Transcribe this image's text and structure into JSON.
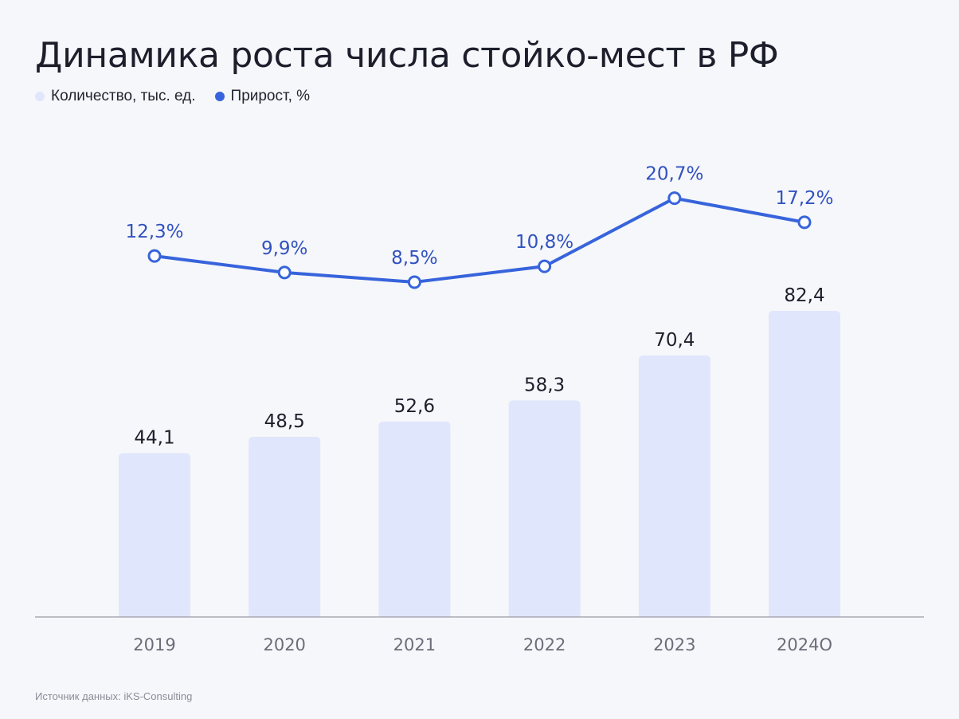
{
  "title": "Динамика роста числа стойко-мест в РФ",
  "legend": {
    "bars_label": "Количество, тыс. ед.",
    "line_label": "Прирост, %"
  },
  "source": "Источник данных: iKS-Consulting",
  "colors": {
    "bar": "#e0e6fc",
    "line": "#3764dc",
    "pct_text": "#3152c0",
    "axis": "#9a9ca5"
  },
  "chart_data": {
    "type": "bar",
    "categories": [
      "2019",
      "2020",
      "2021",
      "2022",
      "2023",
      "2024О"
    ],
    "series": [
      {
        "name": "Количество, тыс. ед.",
        "type": "bar",
        "values": [
          44.1,
          48.5,
          52.6,
          58.3,
          70.4,
          82.4
        ],
        "labels": [
          "44,1",
          "48,5",
          "52,6",
          "58,3",
          "70,4",
          "82,4"
        ]
      },
      {
        "name": "Прирост, %",
        "type": "line",
        "values": [
          12.3,
          9.9,
          8.5,
          10.8,
          20.7,
          17.2
        ],
        "labels": [
          "12,3%",
          "9,9%",
          "8,5%",
          "10,8%",
          "20,7%",
          "17,2%"
        ]
      }
    ],
    "legend_position": "top-left",
    "grid": false
  }
}
